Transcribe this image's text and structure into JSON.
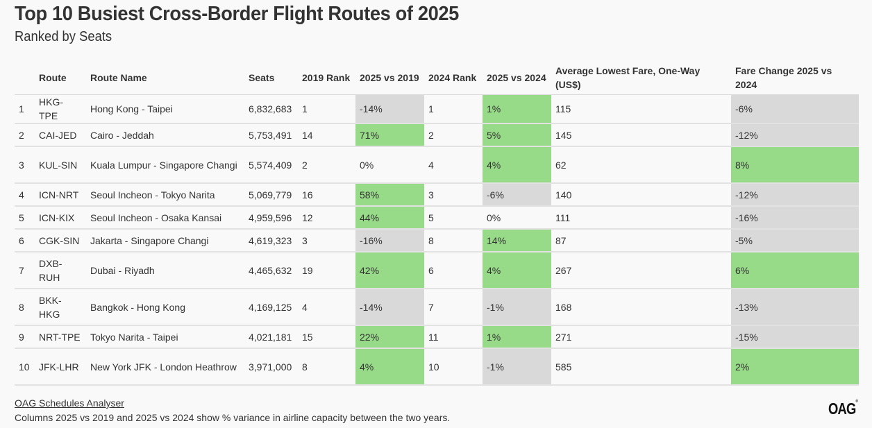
{
  "title": "Top 10 Busiest Cross-Border Flight Routes of 2025",
  "subtitle": "Ranked by Seats",
  "colors": {
    "positive": "#97db88",
    "negative": "#d9d9d9",
    "text": "#333333",
    "background": "#f9f9f9"
  },
  "chart_data": {
    "type": "table",
    "title": "Top 10 Busiest Cross-Border Flight Routes of 2025",
    "subtitle": "Ranked by Seats",
    "columns": [
      "",
      "Route",
      "Route Name",
      "Seats",
      "2019 Rank",
      "2025 vs 2019",
      "2024 Rank",
      "2025 vs 2024",
      "Average Lowest Fare, One-Way (US$)",
      "Fare Change 2025 vs 2024"
    ],
    "rows": [
      {
        "rank": "1",
        "route": "HKG-TPE",
        "name": "Hong Kong - Taipei",
        "seats": "6,832,683",
        "rank2019": "1",
        "vs2019": "-14%",
        "rank2024": "1",
        "vs2024": "1%",
        "fare": "115",
        "fare_change": "-6%"
      },
      {
        "rank": "2",
        "route": "CAI-JED",
        "name": "Cairo - Jeddah",
        "seats": "5,753,491",
        "rank2019": "14",
        "vs2019": "71%",
        "rank2024": "2",
        "vs2024": "5%",
        "fare": "145",
        "fare_change": "-12%"
      },
      {
        "rank": "3",
        "route": "KUL-SIN",
        "name": "Kuala Lumpur - Singapore Changi",
        "seats": "5,574,409",
        "rank2019": "2",
        "vs2019": "0%",
        "rank2024": "4",
        "vs2024": "4%",
        "fare": "62",
        "fare_change": "8%"
      },
      {
        "rank": "4",
        "route": "ICN-NRT",
        "name": "Seoul Incheon - Tokyo Narita",
        "seats": "5,069,779",
        "rank2019": "16",
        "vs2019": "58%",
        "rank2024": "3",
        "vs2024": "-6%",
        "fare": "140",
        "fare_change": "-12%"
      },
      {
        "rank": "5",
        "route": "ICN-KIX",
        "name": "Seoul Incheon - Osaka Kansai",
        "seats": "4,959,596",
        "rank2019": "12",
        "vs2019": "44%",
        "rank2024": "5",
        "vs2024": "0%",
        "fare": "111",
        "fare_change": "-16%"
      },
      {
        "rank": "6",
        "route": "CGK-SIN",
        "name": "Jakarta - Singapore Changi",
        "seats": "4,619,323",
        "rank2019": "3",
        "vs2019": "-16%",
        "rank2024": "8",
        "vs2024": "14%",
        "fare": "87",
        "fare_change": "-5%"
      },
      {
        "rank": "7",
        "route": "DXB-RUH",
        "name": "Dubai - Riyadh",
        "seats": "4,465,632",
        "rank2019": "19",
        "vs2019": "42%",
        "rank2024": "6",
        "vs2024": "4%",
        "fare": "267",
        "fare_change": "6%"
      },
      {
        "rank": "8",
        "route": "BKK-HKG",
        "name": "Bangkok - Hong Kong",
        "seats": "4,169,125",
        "rank2019": "4",
        "vs2019": "-14%",
        "rank2024": "7",
        "vs2024": "-1%",
        "fare": "168",
        "fare_change": "-13%"
      },
      {
        "rank": "9",
        "route": "NRT-TPE",
        "name": "Tokyo Narita - Taipei",
        "seats": "4,021,181",
        "rank2019": "15",
        "vs2019": "22%",
        "rank2024": "11",
        "vs2024": "1%",
        "fare": "271",
        "fare_change": "-15%"
      },
      {
        "rank": "10",
        "route": "JFK-LHR",
        "name": "New York JFK - London Heathrow",
        "seats": "3,971,000",
        "rank2019": "8",
        "vs2019": "4%",
        "rank2024": "10",
        "vs2024": "-1%",
        "fare": "585",
        "fare_change": "2%"
      }
    ]
  },
  "headers": {
    "rank": "",
    "route": "Route",
    "name": "Route Name",
    "seats": "Seats",
    "rank2019": "2019 Rank",
    "vs2019": "2025 vs 2019",
    "rank2024": "2024 Rank",
    "vs2024": "2025 vs 2024",
    "fare": "Average Lowest Fare, One-Way (US$)",
    "fare_change": "Fare Change 2025 vs 2024"
  },
  "footer": {
    "source_link": "OAG Schedules Analyser",
    "note": "Columns 2025 vs 2019 and 2025 vs 2024 show % variance in airline capacity between the two years.",
    "logo": "OAG"
  }
}
